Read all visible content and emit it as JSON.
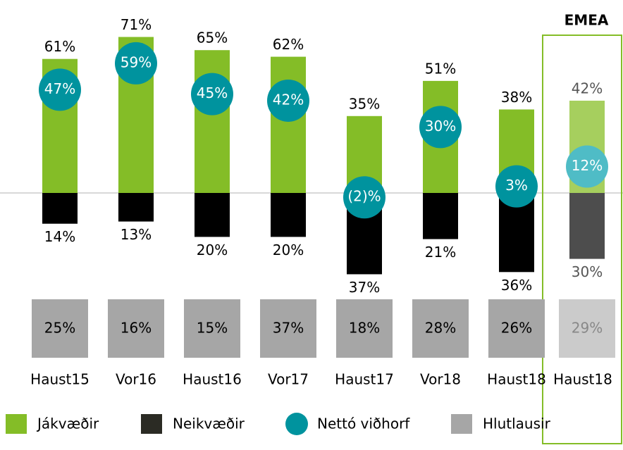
{
  "chart_data": {
    "type": "bar",
    "annotation": "EMEA",
    "categories": [
      "Haust15",
      "Vor16",
      "Haust16",
      "Vor17",
      "Haust17",
      "Vor18",
      "Haust18",
      "Haust18"
    ],
    "series": [
      {
        "name": "Jákvæðir",
        "color": "#84bd27",
        "point_colors": [
          "#84bd27",
          "#84bd27",
          "#84bd27",
          "#84bd27",
          "#84bd27",
          "#84bd27",
          "#84bd27",
          "#a6cf5e"
        ],
        "values": [
          61,
          71,
          65,
          62,
          35,
          51,
          38,
          42
        ],
        "value_labels": [
          "61%",
          "71%",
          "65%",
          "62%",
          "35%",
          "51%",
          "38%",
          "42%"
        ]
      },
      {
        "name": "Neikvæðir",
        "color": "#000000",
        "point_colors": [
          "#000000",
          "#000000",
          "#000000",
          "#000000",
          "#000000",
          "#000000",
          "#000000",
          "#4d4d4d"
        ],
        "values": [
          14,
          13,
          20,
          20,
          37,
          21,
          36,
          30
        ],
        "value_labels": [
          "14%",
          "13%",
          "20%",
          "20%",
          "37%",
          "21%",
          "36%",
          "30%"
        ]
      },
      {
        "name": "Nettó viðhorf",
        "color": "#00939e",
        "point_colors": [
          "#00939e",
          "#00939e",
          "#00939e",
          "#00939e",
          "#00939e",
          "#00939e",
          "#00939e",
          "#4fbcc6"
        ],
        "values": [
          47,
          59,
          45,
          42,
          -2,
          30,
          3,
          12
        ],
        "value_labels": [
          "47%",
          "59%",
          "45%",
          "42%",
          "(2)%",
          "30%",
          "3%",
          "12%"
        ]
      },
      {
        "name": "Hlutlausir",
        "color": "#a6a6a6",
        "point_colors": [
          "#a6a6a6",
          "#a6a6a6",
          "#a6a6a6",
          "#a6a6a6",
          "#a6a6a6",
          "#a6a6a6",
          "#a6a6a6",
          "#cbcbcb"
        ],
        "values": [
          25,
          16,
          15,
          37,
          18,
          28,
          26,
          29
        ],
        "value_labels": [
          "25%",
          "16%",
          "15%",
          "37%",
          "18%",
          "28%",
          "26%",
          "29%"
        ]
      }
    ]
  }
}
